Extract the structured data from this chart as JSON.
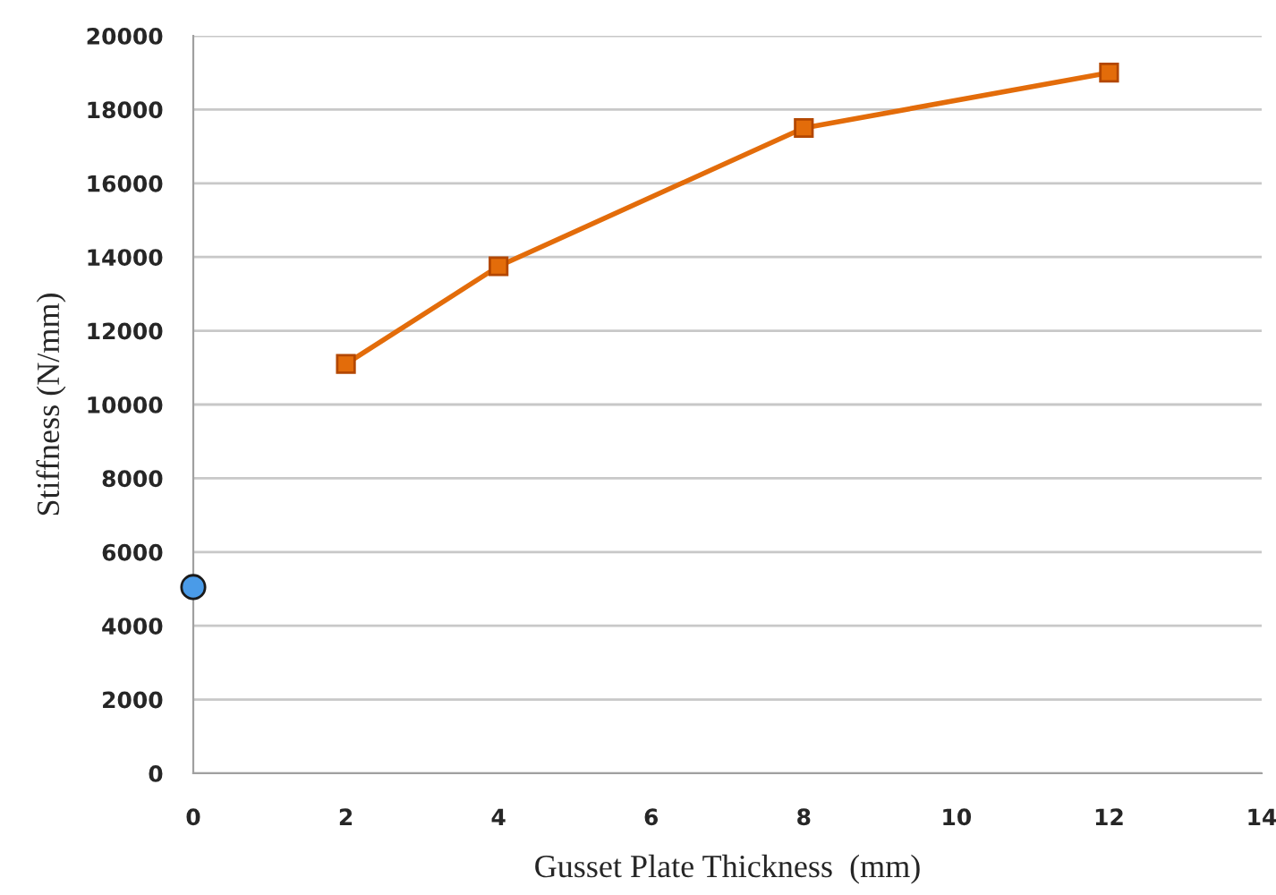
{
  "chart_data": {
    "type": "line",
    "xlabel": "Gusset Plate Thickness  (mm)",
    "ylabel": "Stiffness (N/mm)",
    "series": [
      {
        "color": "#e36c0a",
        "x": [
          2,
          4,
          8,
          12
        ],
        "values": [
          11100,
          13750,
          17500,
          19000
        ],
        "marker": "square"
      },
      {
        "type": "scatter",
        "color": "#4a9be8",
        "x": [
          0
        ],
        "values": [
          5050
        ],
        "marker": "circle"
      }
    ],
    "xlim": [
      0,
      14
    ],
    "xticks": [
      0,
      2,
      4,
      6,
      8,
      10,
      12,
      14
    ],
    "ylim": [
      0,
      20000
    ],
    "yticks": [
      0,
      2000,
      4000,
      6000,
      8000,
      10000,
      12000,
      14000,
      16000,
      18000,
      20000
    ],
    "grid": "y",
    "legend": false
  }
}
